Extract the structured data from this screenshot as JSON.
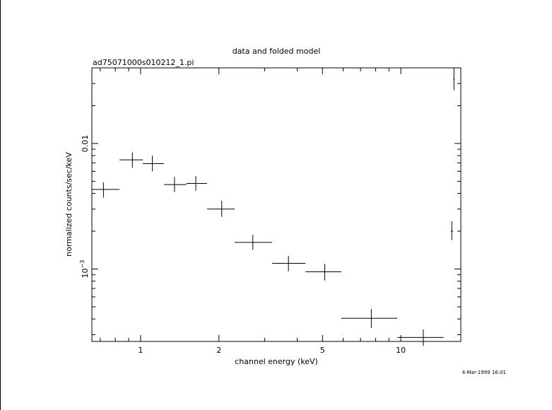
{
  "chart_data": {
    "type": "scatter",
    "title": "data and folded model",
    "subtitle": "ad75071000s010212_1.pi",
    "xlabel": "channel energy (keV)",
    "ylabel": "normalized counts/sec/keV",
    "x_scale": "log",
    "y_scale": "log",
    "xlim": [
      0.65,
      17.0
    ],
    "ylim": [
      0.000265,
      0.04
    ],
    "x_tick_labels": [
      {
        "value": 1,
        "label": "1"
      },
      {
        "value": 2,
        "label": "2"
      },
      {
        "value": 5,
        "label": "5"
      },
      {
        "value": 10,
        "label": "10"
      }
    ],
    "y_tick_labels": [
      {
        "value": 0.01,
        "label": "0.01",
        "base": "",
        "exp": ""
      },
      {
        "value": 0.001,
        "label": "",
        "base": "10",
        "exp": "−3"
      }
    ],
    "grid": false,
    "series": [
      {
        "name": "",
        "points": [
          {
            "x": 0.72,
            "x_lo": 0.65,
            "x_hi": 0.83,
            "y": 0.0043,
            "y_lo": 0.0037,
            "y_hi": 0.0049
          },
          {
            "x": 0.93,
            "x_lo": 0.83,
            "x_hi": 1.02,
            "y": 0.0074,
            "y_lo": 0.0064,
            "y_hi": 0.0085
          },
          {
            "x": 1.11,
            "x_lo": 1.02,
            "x_hi": 1.23,
            "y": 0.0069,
            "y_lo": 0.006,
            "y_hi": 0.008
          },
          {
            "x": 1.35,
            "x_lo": 1.23,
            "x_hi": 1.5,
            "y": 0.0047,
            "y_lo": 0.0041,
            "y_hi": 0.0054
          },
          {
            "x": 1.63,
            "x_lo": 1.5,
            "x_hi": 1.8,
            "y": 0.0048,
            "y_lo": 0.0042,
            "y_hi": 0.0055
          },
          {
            "x": 2.05,
            "x_lo": 1.8,
            "x_hi": 2.3,
            "y": 0.003,
            "y_lo": 0.0026,
            "y_hi": 0.0035
          },
          {
            "x": 2.7,
            "x_lo": 2.3,
            "x_hi": 3.2,
            "y": 0.00163,
            "y_lo": 0.00142,
            "y_hi": 0.00187
          },
          {
            "x": 3.7,
            "x_lo": 3.2,
            "x_hi": 4.3,
            "y": 0.00111,
            "y_lo": 0.00096,
            "y_hi": 0.00127
          },
          {
            "x": 5.1,
            "x_lo": 4.3,
            "x_hi": 5.9,
            "y": 0.00095,
            "y_lo": 0.00081,
            "y_hi": 0.0011
          },
          {
            "x": 7.7,
            "x_lo": 5.9,
            "x_hi": 9.7,
            "y": 0.000405,
            "y_lo": 0.00034,
            "y_hi": 0.00048
          },
          {
            "x": 12.2,
            "x_lo": 9.7,
            "x_hi": 14.6,
            "y": 0.000285,
            "y_lo": 0.000245,
            "y_hi": 0.00033
          },
          {
            "x": 15.7,
            "x_lo": 15.55,
            "x_hi": 15.85,
            "y": 0.002,
            "y_lo": 0.0017,
            "y_hi": 0.0024
          },
          {
            "x": 16.0,
            "x_lo": 15.9,
            "x_hi": 16.1,
            "y": 0.0325,
            "y_lo": 0.0265,
            "y_hi": 0.04
          }
        ]
      }
    ]
  },
  "footer": {
    "timestamp": "4-Mar-1999 16:01"
  }
}
